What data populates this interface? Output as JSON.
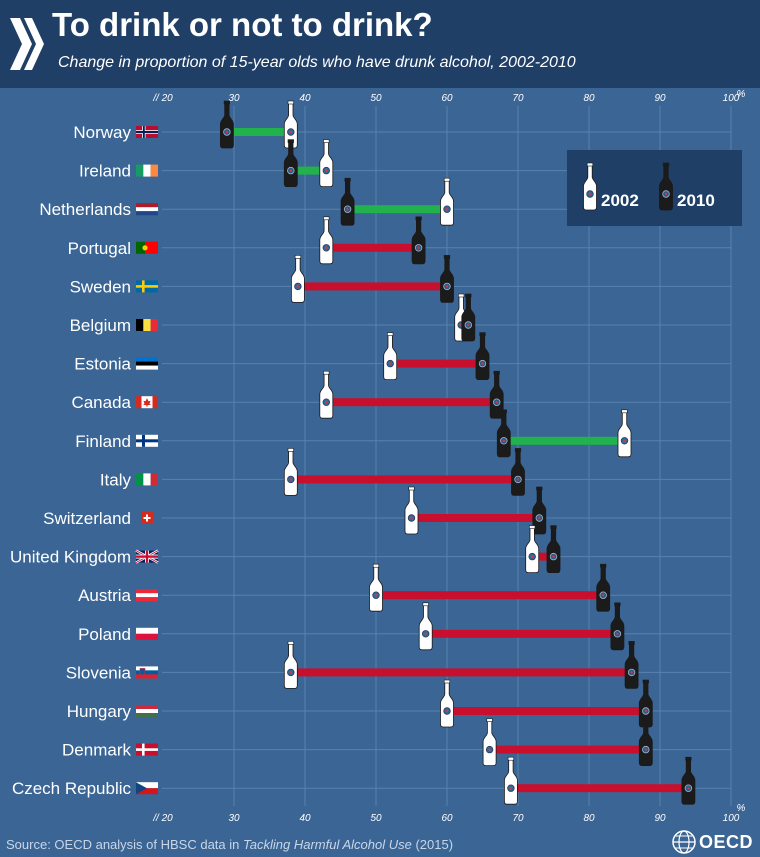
{
  "header": {
    "title": "To drink or not to drink?",
    "subtitle": "Change in proportion of 15-year olds who have drunk alcohol, 2002-2010"
  },
  "footer": {
    "source_prefix": "Source: OECD analysis of HBSC data in ",
    "source_title": "Tackling Harmful Alcohol Use",
    "source_suffix": " (2015)",
    "logo_text": "OECD"
  },
  "colors": {
    "background": "#3a6594",
    "header": "#1f3f66",
    "decrease": "#21b24b",
    "increase": "#c8102e",
    "bottle_2002": "#ffffff",
    "bottle_2010": "#1b1b1b"
  },
  "chart_data": {
    "type": "dumbbell",
    "title": "To drink or not to drink?",
    "subtitle": "Change in proportion of 15-year olds who have drunk alcohol, 2002-2010",
    "xlim": [
      20,
      100
    ],
    "x_ticks": [
      "// 20",
      "30",
      "40",
      "50",
      "60",
      "70",
      "80",
      "90",
      "100"
    ],
    "x_unit": "%",
    "grid": true,
    "legend_position": "top-right",
    "series": [
      {
        "name": "2002",
        "marker": "white-bottle"
      },
      {
        "name": "2010",
        "marker": "black-bottle"
      }
    ],
    "categories": [
      "Norway",
      "Ireland",
      "Netherlands",
      "Portugal",
      "Sweden",
      "Belgium",
      "Estonia",
      "Canada",
      "Finland",
      "Italy",
      "Switzerland",
      "United Kingdom",
      "Austria",
      "Poland",
      "Slovenia",
      "Hungary",
      "Denmark",
      "Czech Republic"
    ],
    "values_2002": [
      38,
      43,
      60,
      43,
      39,
      62,
      52,
      43,
      85,
      38,
      55,
      72,
      50,
      57,
      38,
      60,
      66,
      69
    ],
    "values_2010": [
      29,
      38,
      46,
      56,
      60,
      63,
      65,
      67,
      68,
      70,
      73,
      75,
      82,
      84,
      86,
      88,
      88,
      94
    ]
  }
}
